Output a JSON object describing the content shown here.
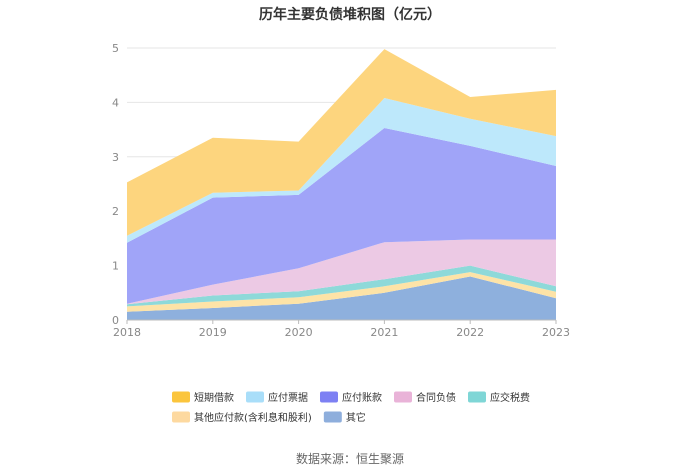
{
  "chart_data": {
    "type": "area",
    "stacked": true,
    "title": "历年主要负债堆积图（亿元）",
    "xlabel": "",
    "ylabel": "",
    "categories": [
      "2018",
      "2019",
      "2020",
      "2021",
      "2022",
      "2023"
    ],
    "y_ticks": [
      "0",
      "1",
      "2",
      "3",
      "4",
      "5"
    ],
    "ylim": [
      0,
      5
    ],
    "grid": true,
    "legend_position": "bottom",
    "series": [
      {
        "name": "其它",
        "color": "#8eb0dd",
        "values": [
          0.15,
          0.22,
          0.3,
          0.5,
          0.8,
          0.4
        ]
      },
      {
        "name": "其他应付款(含利息和股利)",
        "color": "#fde3a7",
        "values": [
          0.1,
          0.12,
          0.12,
          0.12,
          0.08,
          0.12
        ]
      },
      {
        "name": "应交税费",
        "color": "#8ed9d9",
        "values": [
          0.04,
          0.11,
          0.11,
          0.13,
          0.12,
          0.1
        ]
      },
      {
        "name": "合同负债",
        "color": "#ecc9e4",
        "values": [
          0.01,
          0.2,
          0.42,
          0.68,
          0.48,
          0.86
        ]
      },
      {
        "name": "应付账款",
        "color": "#a0a4f8",
        "values": [
          1.12,
          1.6,
          1.35,
          2.1,
          1.72,
          1.35
        ]
      },
      {
        "name": "应付票据",
        "color": "#bde8fb",
        "values": [
          0.13,
          0.09,
          0.08,
          0.55,
          0.5,
          0.55
        ]
      },
      {
        "name": "短期借款",
        "color": "#fdd57e",
        "values": [
          0.98,
          1.01,
          0.9,
          0.9,
          0.4,
          0.85
        ]
      }
    ],
    "legend_order": [
      "短期借款",
      "应付票据",
      "应付账款",
      "合同负债",
      "应交税费",
      "其他应付款(含利息和股利)",
      "其它"
    ],
    "legend_swatch_colors": {
      "短期借款": "#fbc53d",
      "应付票据": "#a9def9",
      "应付账款": "#7d80f3",
      "合同负债": "#e9b3d8",
      "应交税费": "#7fd6d6",
      "其他应付款(含利息和股利)": "#fdd9a0",
      "其它": "#8eaedc"
    }
  },
  "source_text": "数据来源：恒生聚源"
}
